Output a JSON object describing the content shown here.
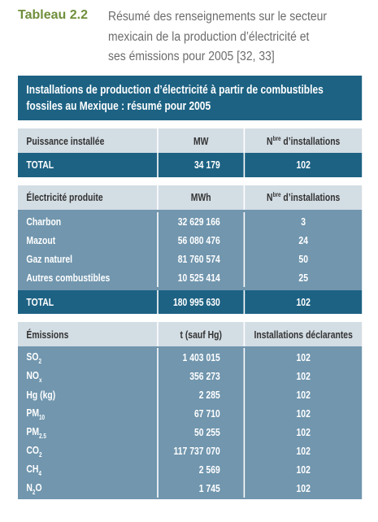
{
  "caption": {
    "label": "Tableau 2.2",
    "text_lines": [
      "Résumé des renseignements sur le secteur",
      "mexicain de la production d’électricité et",
      "ses émissions pour 2005  [32, 33]"
    ]
  },
  "table": {
    "title_lines": [
      "Installations de production d’électricité à partir de combustibles",
      "fossiles au Mexique : résumé pour 2005"
    ],
    "sections": [
      {
        "header": [
          "Puissance installée",
          "MW",
          {
            "base": "N",
            "sup": "bre",
            "text": "d’installations"
          }
        ],
        "total": [
          "TOTAL",
          "34 179",
          "102"
        ]
      },
      {
        "header": [
          "Électricité produite",
          "MWh",
          {
            "base": "N",
            "sup": "bre",
            "text": "d’installations"
          }
        ],
        "rows": [
          [
            "Charbon",
            "32 629 166",
            "3"
          ],
          [
            "Mazout",
            "56 080 476",
            "24"
          ],
          [
            "Gaz naturel",
            "81 760 574",
            "50"
          ],
          [
            "Autres combustibles",
            "10 525 414",
            "25"
          ]
        ],
        "total": [
          "TOTAL",
          "180 995 630",
          "102"
        ]
      },
      {
        "header": [
          "Émissions",
          "t (sauf Hg)",
          "Installations déclarantes"
        ],
        "rows": [
          [
            {
              "base": "SO",
              "sub": "2"
            },
            "1 403 015",
            "102"
          ],
          [
            {
              "base": "NO",
              "sub": "x"
            },
            "356 273",
            "102"
          ],
          [
            "Hg (kg)",
            "2 285",
            "102"
          ],
          [
            {
              "base": "PM",
              "sub": "10"
            },
            "67 710",
            "102"
          ],
          [
            {
              "base": "PM",
              "sub": "2.5"
            },
            "50 255",
            "102"
          ],
          [
            {
              "base": "CO",
              "sub": "2"
            },
            "117 737 070",
            "102"
          ],
          [
            {
              "base": "CH",
              "sub": "4"
            },
            "2 569",
            "102"
          ],
          [
            {
              "base": "N",
              "sub": "2",
              "text": "O"
            },
            "1 745",
            "102"
          ]
        ]
      }
    ]
  }
}
